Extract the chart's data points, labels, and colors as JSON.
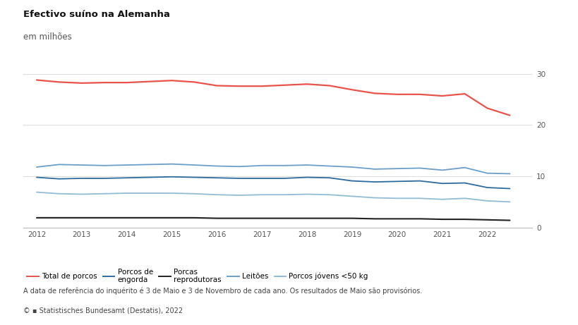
{
  "title": "Efectivo suíno na Alemanha",
  "subtitle": "em milhões",
  "footnote": "A data de referência do inquérito é 3 de Maio e 3 de Novembro de cada ano. Os resultados de Maio são provisórios.",
  "source": "© ▪ Statistisches Bundesamt (Destatis), 2022",
  "background_color": "#ffffff",
  "plot_background_color": "#ffffff",
  "ylim": [
    0,
    33
  ],
  "yticks": [
    0,
    10,
    20,
    30
  ],
  "x_years": [
    2012,
    2012.5,
    2013,
    2013.5,
    2014,
    2014.5,
    2015,
    2015.5,
    2016,
    2016.5,
    2017,
    2017.5,
    2018,
    2018.5,
    2019,
    2019.5,
    2020,
    2020.5,
    2021,
    2021.5,
    2022,
    2022.5
  ],
  "xlim": [
    2011.7,
    2023.0
  ],
  "series": [
    {
      "name": "Total de porcos",
      "color": "#e8534a",
      "lw": 1.6,
      "values": [
        28.8,
        28.4,
        28.2,
        28.3,
        28.3,
        28.5,
        28.7,
        28.4,
        27.7,
        27.6,
        27.6,
        27.8,
        28.0,
        27.7,
        26.9,
        26.2,
        26.0,
        26.0,
        25.7,
        26.1,
        23.3,
        21.9
      ]
    },
    {
      "name": "Leitões",
      "color": "#6b9ec8",
      "lw": 1.3,
      "values": [
        11.8,
        12.3,
        12.2,
        12.1,
        12.2,
        12.3,
        12.4,
        12.2,
        12.0,
        11.9,
        12.1,
        12.1,
        12.2,
        12.0,
        11.8,
        11.4,
        11.5,
        11.6,
        11.2,
        11.7,
        10.6,
        10.5
      ]
    },
    {
      "name": "Porcos de engorda",
      "color": "#2e6b9e",
      "lw": 1.3,
      "values": [
        9.8,
        9.5,
        9.6,
        9.6,
        9.7,
        9.8,
        9.9,
        9.8,
        9.7,
        9.6,
        9.6,
        9.6,
        9.8,
        9.7,
        9.1,
        8.9,
        9.0,
        9.1,
        8.6,
        8.7,
        7.8,
        7.6
      ]
    },
    {
      "name": "Porcos jóvens <50 kg",
      "color": "#92bcd4",
      "lw": 1.3,
      "values": [
        6.9,
        6.6,
        6.5,
        6.6,
        6.7,
        6.7,
        6.7,
        6.6,
        6.4,
        6.3,
        6.4,
        6.4,
        6.5,
        6.4,
        6.1,
        5.8,
        5.7,
        5.7,
        5.5,
        5.7,
        5.2,
        5.0
      ]
    },
    {
      "name": "Porcas reprodutoras",
      "color": "#222222",
      "lw": 1.5,
      "values": [
        1.9,
        1.9,
        1.9,
        1.9,
        1.9,
        1.9,
        1.9,
        1.9,
        1.8,
        1.8,
        1.8,
        1.8,
        1.8,
        1.8,
        1.8,
        1.7,
        1.7,
        1.7,
        1.6,
        1.6,
        1.5,
        1.4
      ]
    }
  ],
  "legend_items": [
    {
      "label": "Total de porcos",
      "color": "#e8534a"
    },
    {
      "label": "Porcos de\nengorda",
      "color": "#2e6b9e"
    },
    {
      "label": "Porcas\nreprodutoras",
      "color": "#222222"
    },
    {
      "label": "Leitões",
      "color": "#6b9ec8"
    },
    {
      "label": "Porcos jóvens <50 kg",
      "color": "#92bcd4"
    }
  ]
}
